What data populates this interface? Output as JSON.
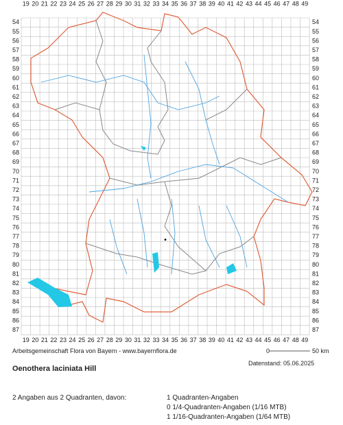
{
  "map": {
    "x_labels": [
      19,
      20,
      21,
      22,
      23,
      24,
      25,
      26,
      27,
      28,
      29,
      30,
      31,
      32,
      33,
      34,
      35,
      36,
      37,
      38,
      39,
      40,
      41,
      42,
      43,
      44,
      45,
      46,
      47,
      48,
      49
    ],
    "y_labels": [
      54,
      55,
      56,
      57,
      58,
      59,
      60,
      61,
      62,
      63,
      64,
      65,
      66,
      67,
      68,
      69,
      70,
      71,
      72,
      73,
      74,
      75,
      76,
      77,
      78,
      79,
      80,
      81,
      82,
      83,
      84,
      85,
      86,
      87
    ],
    "occurrences": [
      {
        "x": 34,
        "y": 77
      }
    ],
    "scale": {
      "start": "0",
      "end": "50 km"
    },
    "credit": "Arbeitsgemeinschaft Flora von Bayern - www.bayernflora.de",
    "date": "Datenstand: 05.06.2025"
  },
  "species": "Oenothera laciniata Hill",
  "summary": {
    "total": "2 Angaben aus 2 Quadranten, davon:",
    "lines": [
      "1 Quadranten-Angaben",
      "0 1/4-Quadranten-Angaben (1/16 MTB)",
      "1 1/16-Quadranten-Angaben (1/64 MTB)"
    ]
  }
}
